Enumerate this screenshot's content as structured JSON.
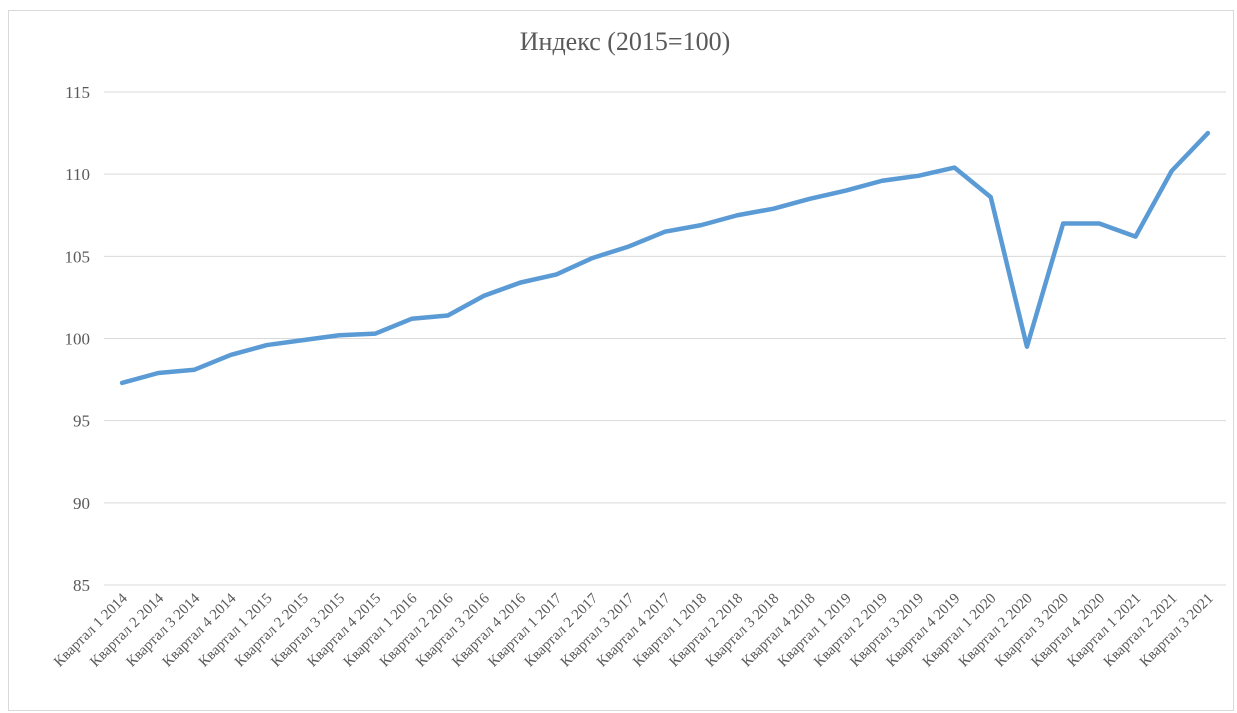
{
  "chart_data": {
    "type": "line",
    "title": "Индекс (2015=100)",
    "categories": [
      "Квартал 1 2014",
      "Квартал 2 2014",
      "Квартал 3 2014",
      "Квартал 4 2014",
      "Квартал 1 2015",
      "Квартал 2 2015",
      "Квартал 3 2015",
      "Квартал 4 2015",
      "Квартал 1 2016",
      "Квартал 2 2016",
      "Квартал 3 2016",
      "Квартал 4 2016",
      "Квартал 1 2017",
      "Квартал 2 2017",
      "Квартал 3 2017",
      "Квартал 4 2017",
      "Квартал 1 2018",
      "Квартал 2 2018",
      "Квартал 3 2018",
      "Квартал 4 2018",
      "Квартал 1 2019",
      "Квартал 2 2019",
      "Квартал 3 2019",
      "Квартал 4 2019",
      "Квартал 1 2020",
      "Квартал 2 2020",
      "Квартал 3 2020",
      "Квартал 4 2020",
      "Квартал 1 2021",
      "Квартал 2 2021",
      "Квартал 3 2021"
    ],
    "values": [
      97.3,
      97.9,
      98.1,
      99.0,
      99.6,
      99.9,
      100.2,
      100.3,
      101.2,
      101.4,
      102.6,
      103.4,
      103.9,
      104.9,
      105.6,
      106.5,
      106.9,
      107.5,
      107.9,
      108.5,
      109.0,
      109.6,
      109.9,
      110.4,
      108.6,
      99.5,
      107.0,
      107.0,
      106.2,
      110.2,
      112.5
    ],
    "color": "#5b9bd5",
    "ylim": [
      85,
      115
    ],
    "yticks": [
      85,
      90,
      95,
      100,
      105,
      110,
      115
    ],
    "grid": true
  }
}
